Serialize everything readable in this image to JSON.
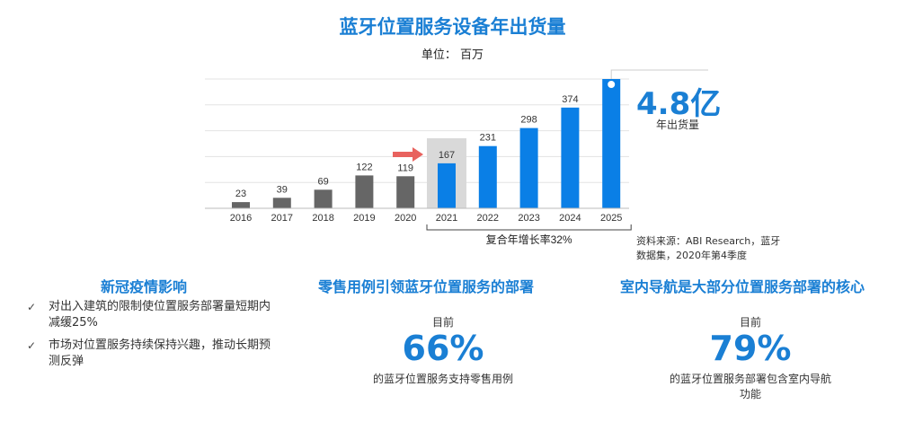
{
  "title": "蓝牙位置服务设备年出货量",
  "unit_label": "单位： 百万",
  "highlight": {
    "value": "4.8亿",
    "label": "年出货量"
  },
  "source": "资料来源：ABI Research，蓝牙数据集，2020年第4季度",
  "cagr_label": "复合年增长率32%",
  "colors": {
    "accent": "#1a7fd4",
    "historic_bar": "#666666",
    "forecast_bar": "#0a7fe6",
    "highlight_box": "#d9d9d9",
    "arrow": "#e8625e"
  },
  "chart_data": {
    "type": "bar",
    "title": "蓝牙位置服务设备年出货量",
    "ylabel": "单位： 百万",
    "categories": [
      "2016",
      "2017",
      "2018",
      "2019",
      "2020",
      "2021",
      "2022",
      "2023",
      "2024",
      "2025"
    ],
    "values": [
      23,
      39,
      69,
      122,
      119,
      167,
      231,
      298,
      374,
      480
    ],
    "labels": [
      "23",
      "39",
      "69",
      "122",
      "119",
      "167",
      "231",
      "298",
      "374",
      ""
    ],
    "historic_years": [
      "2016",
      "2017",
      "2018",
      "2019",
      "2020"
    ],
    "forecast_years": [
      "2021",
      "2022",
      "2023",
      "2024",
      "2025"
    ],
    "highlighted_category": "2021",
    "ylim": [
      0,
      480
    ],
    "grid": true
  },
  "sections": {
    "covid": {
      "title": "新冠疫情影响",
      "bullets": [
        {
          "check": "✓",
          "text": "对出入建筑的限制使位置服务部署量短期内减缓25%"
        },
        {
          "check": "✓",
          "text": "市场对位置服务持续保持兴趣，推动长期预测反弹"
        }
      ]
    },
    "retail": {
      "title": "零售用例引领蓝牙位置服务的部署",
      "prefix": "目前",
      "percent": "66%",
      "desc": "的蓝牙位置服务支持零售用例"
    },
    "indoor": {
      "title": "室内导航是大部分位置服务部署的核心",
      "prefix": "目前",
      "percent": "79%",
      "desc": "的蓝牙位置服务部署包含室内导航功能"
    }
  }
}
